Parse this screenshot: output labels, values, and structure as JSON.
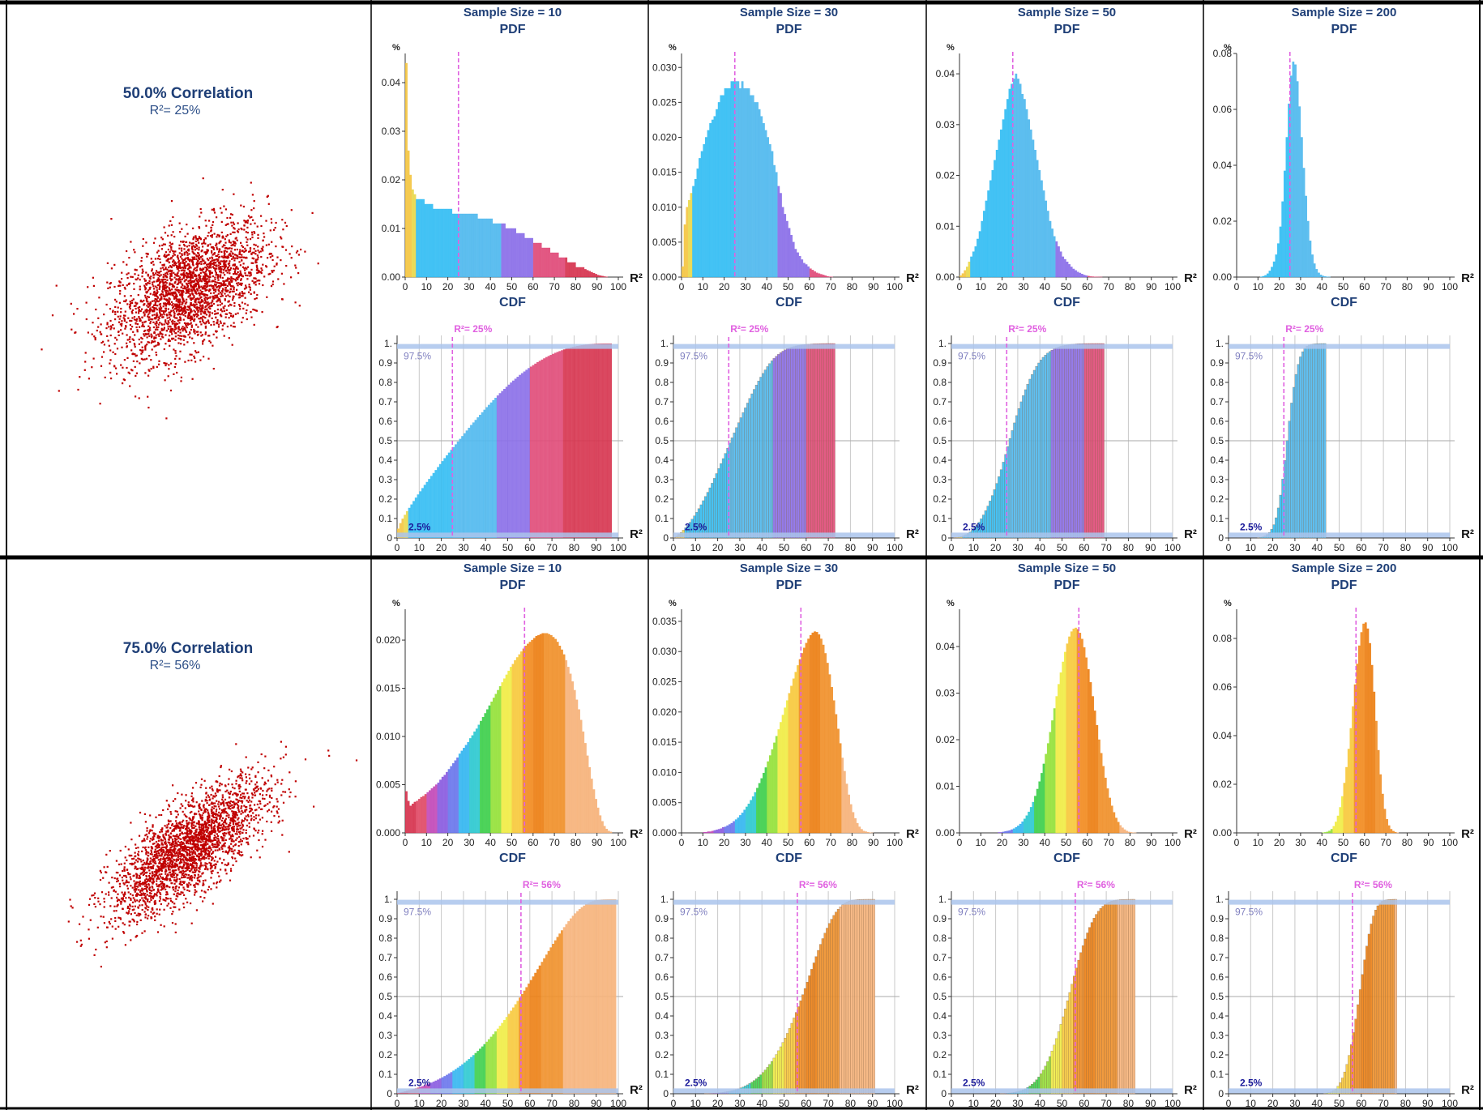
{
  "colors": {
    "title": "#1f3f77",
    "subtitle": "#2d4f88",
    "scatter": "#c00000",
    "median_line": "#e060e0",
    "band": "#aac4ec",
    "pct_label": "#8080c0",
    "low_label": "#1a1a9a",
    "axis": "#333333",
    "grid": "#c8c8c8",
    "frame": "#000000"
  },
  "labels": {
    "pdf": "PDF",
    "cdf": "CDF",
    "percent_axis": "%",
    "r2_axis": "R²",
    "band_upper": "97.5%",
    "band_lower": "2.5%"
  },
  "x_ticks": [
    "0",
    "10",
    "20",
    "30",
    "40",
    "50",
    "60",
    "70",
    "80",
    "90",
    "100"
  ],
  "cdf_y_ticks": [
    "0",
    "0.1",
    "0.2",
    "0.3",
    "0.4",
    "0.5",
    "0.6",
    "0.7",
    "0.8",
    "0.9",
    "1."
  ],
  "rows": [
    {
      "correlation_label": "50.0% Correlation",
      "r2_label": "R²= 25%",
      "cdf_marker_label": "R²= 25%",
      "correlation": 0.5,
      "true_r2": 25,
      "samples": [
        {
          "title": "Sample Size = 10",
          "pdf_y_ticks": [
            "0.00",
            "0.01",
            "0.02",
            "0.03",
            "0.04"
          ],
          "pdf_ymax": 0.046,
          "pdf_values": [
            0.044,
            0.026,
            0.021,
            0.018,
            0.017,
            0.016,
            0.016,
            0.016,
            0.016,
            0.015,
            0.015,
            0.015,
            0.015,
            0.014,
            0.014,
            0.014,
            0.014,
            0.014,
            0.014,
            0.014,
            0.014,
            0.014,
            0.013,
            0.013,
            0.013,
            0.013,
            0.013,
            0.013,
            0.013,
            0.013,
            0.013,
            0.013,
            0.013,
            0.013,
            0.012,
            0.012,
            0.012,
            0.012,
            0.012,
            0.012,
            0.012,
            0.011,
            0.011,
            0.011,
            0.011,
            0.011,
            0.011,
            0.01,
            0.01,
            0.01,
            0.01,
            0.01,
            0.009,
            0.009,
            0.009,
            0.009,
            0.008,
            0.008,
            0.008,
            0.008,
            0.007,
            0.007,
            0.007,
            0.007,
            0.006,
            0.006,
            0.006,
            0.006,
            0.005,
            0.005,
            0.005,
            0.005,
            0.004,
            0.004,
            0.004,
            0.004,
            0.003,
            0.003,
            0.003,
            0.003,
            0.002,
            0.002,
            0.002,
            0.002,
            0.0016,
            0.0014,
            0.0012,
            0.001,
            0.0008,
            0.0006,
            0.0004,
            0.0003,
            0.0002,
            0.0001,
            5e-05,
            0,
            0,
            0,
            0,
            0
          ],
          "cdf_end": 97
        },
        {
          "title": "Sample Size = 30",
          "pdf_y_ticks": [
            "0.000",
            "0.005",
            "0.010",
            "0.015",
            "0.020",
            "0.025",
            "0.030"
          ],
          "pdf_ymax": 0.032,
          "pdf_values": [
            0.0015,
            0.0075,
            0.01,
            0.011,
            0.012,
            0.013,
            0.014,
            0.0155,
            0.017,
            0.018,
            0.019,
            0.02,
            0.021,
            0.022,
            0.0225,
            0.023,
            0.024,
            0.025,
            0.026,
            0.026,
            0.027,
            0.027,
            0.027,
            0.028,
            0.028,
            0.028,
            0.028,
            0.027,
            0.028,
            0.027,
            0.027,
            0.027,
            0.026,
            0.026,
            0.025,
            0.025,
            0.024,
            0.023,
            0.022,
            0.021,
            0.02,
            0.019,
            0.018,
            0.016,
            0.015,
            0.013,
            0.012,
            0.01,
            0.009,
            0.008,
            0.007,
            0.006,
            0.005,
            0.004,
            0.0035,
            0.003,
            0.0025,
            0.002,
            0.0018,
            0.0015,
            0.0012,
            0.001,
            0.0008,
            0.0006,
            0.0005,
            0.0004,
            0.0003,
            0.0002,
            0.0001,
            5e-05,
            2e-05,
            0,
            0,
            0,
            0,
            0,
            0,
            0,
            0,
            0,
            0,
            0,
            0,
            0,
            0,
            0,
            0,
            0,
            0,
            0,
            0,
            0,
            0,
            0,
            0,
            0,
            0,
            0,
            0,
            0
          ],
          "cdf_end": 73
        },
        {
          "title": "Sample Size = 50",
          "pdf_y_ticks": [
            "0.00",
            "0.01",
            "0.02",
            "0.03",
            "0.04"
          ],
          "pdf_ymax": 0.044,
          "pdf_values": [
            0.0003,
            0.0007,
            0.0013,
            0.002,
            0.003,
            0.004,
            0.005,
            0.006,
            0.0075,
            0.009,
            0.011,
            0.013,
            0.015,
            0.017,
            0.019,
            0.021,
            0.023,
            0.025,
            0.027,
            0.029,
            0.031,
            0.033,
            0.035,
            0.037,
            0.038,
            0.039,
            0.04,
            0.039,
            0.038,
            0.036,
            0.035,
            0.033,
            0.031,
            0.029,
            0.027,
            0.025,
            0.023,
            0.021,
            0.019,
            0.017,
            0.015,
            0.013,
            0.011,
            0.0095,
            0.008,
            0.007,
            0.006,
            0.005,
            0.004,
            0.0035,
            0.003,
            0.0025,
            0.002,
            0.0016,
            0.0013,
            0.001,
            0.0008,
            0.0006,
            0.0004,
            0.0003,
            0.0002,
            0.0001,
            8e-05,
            5e-05,
            3e-05,
            2e-05,
            1e-05,
            0,
            0,
            0,
            0,
            0,
            0,
            0,
            0,
            0,
            0,
            0,
            0,
            0,
            0,
            0,
            0,
            0,
            0,
            0,
            0,
            0,
            0,
            0,
            0,
            0,
            0,
            0,
            0,
            0,
            0,
            0,
            0,
            0
          ],
          "cdf_end": 69
        },
        {
          "title": "Sample Size = 200",
          "pdf_y_ticks": [
            "0.00",
            "0.02",
            "0.04",
            "0.06",
            "0.08"
          ],
          "pdf_ymax": 0.08,
          "pdf_values": [
            0,
            0,
            0,
            0,
            0,
            0,
            0,
            0,
            0,
            0,
            0,
            0.0001,
            0.0003,
            0.0006,
            0.0012,
            0.0022,
            0.0036,
            0.0055,
            0.008,
            0.012,
            0.018,
            0.027,
            0.038,
            0.05,
            0.062,
            0.072,
            0.077,
            0.076,
            0.07,
            0.061,
            0.05,
            0.039,
            0.029,
            0.02,
            0.013,
            0.008,
            0.0048,
            0.0028,
            0.0015,
            0.0008,
            0.0004,
            0.0002,
            0.0001,
            5e-05,
            0,
            0,
            0,
            0,
            0,
            0,
            0,
            0,
            0,
            0,
            0,
            0,
            0,
            0,
            0,
            0,
            0,
            0,
            0,
            0,
            0,
            0,
            0,
            0,
            0,
            0,
            0,
            0,
            0,
            0,
            0,
            0,
            0,
            0,
            0,
            0,
            0,
            0,
            0,
            0,
            0,
            0,
            0,
            0,
            0,
            0,
            0,
            0,
            0,
            0,
            0,
            0,
            0,
            0,
            0,
            0
          ],
          "cdf_end": 44
        }
      ]
    },
    {
      "correlation_label": "75.0% Correlation",
      "r2_label": "R²= 56%",
      "cdf_marker_label": "R²= 56%",
      "correlation": 0.75,
      "true_r2": 56,
      "samples": [
        {
          "title": "Sample Size = 10",
          "pdf_y_ticks": [
            "0.000",
            "0.005",
            "0.010",
            "0.015",
            "0.020"
          ],
          "pdf_ymax": 0.0232,
          "pdf_values": [
            0.0043,
            0.0033,
            0.0028,
            0.003,
            0.0032,
            0.0033,
            0.0035,
            0.0037,
            0.0038,
            0.004,
            0.0042,
            0.0044,
            0.0046,
            0.0048,
            0.005,
            0.0052,
            0.0055,
            0.0058,
            0.006,
            0.0063,
            0.0066,
            0.0069,
            0.0072,
            0.0075,
            0.0078,
            0.0082,
            0.0085,
            0.0088,
            0.0091,
            0.0094,
            0.0098,
            0.0101,
            0.0105,
            0.0108,
            0.0112,
            0.0116,
            0.012,
            0.0124,
            0.0128,
            0.0132,
            0.0136,
            0.014,
            0.0144,
            0.0148,
            0.0152,
            0.0156,
            0.016,
            0.0164,
            0.0168,
            0.0172,
            0.0175,
            0.0179,
            0.0182,
            0.0185,
            0.0188,
            0.0191,
            0.0194,
            0.0196,
            0.0198,
            0.02,
            0.0202,
            0.0204,
            0.0205,
            0.0206,
            0.0207,
            0.0207,
            0.0207,
            0.0206,
            0.0205,
            0.0203,
            0.0201,
            0.0198,
            0.0194,
            0.019,
            0.0185,
            0.0179,
            0.0172,
            0.0165,
            0.0157,
            0.0148,
            0.0138,
            0.0128,
            0.0117,
            0.0105,
            0.0093,
            0.008,
            0.0068,
            0.0056,
            0.0045,
            0.0035,
            0.0026,
            0.0018,
            0.0012,
            0.0007,
            0.0004,
            0.0002,
            0.0001,
            0,
            0,
            0
          ],
          "cdf_end": 99
        },
        {
          "title": "Sample Size = 30",
          "pdf_y_ticks": [
            "0.000",
            "0.005",
            "0.010",
            "0.015",
            "0.020",
            "0.025",
            "0.030",
            "0.035"
          ],
          "pdf_ymax": 0.037,
          "pdf_values": [
            0,
            0,
            0,
            0,
            0,
            0,
            0,
            0,
            0,
            0,
            0.0001,
            0.0001,
            0.0002,
            0.0002,
            0.0003,
            0.0004,
            0.0005,
            0.0006,
            0.0007,
            0.0009,
            0.001,
            0.0012,
            0.0014,
            0.0016,
            0.0019,
            0.0022,
            0.0025,
            0.0029,
            0.0033,
            0.0038,
            0.0043,
            0.0048,
            0.0054,
            0.006,
            0.0067,
            0.0074,
            0.0082,
            0.009,
            0.0099,
            0.0108,
            0.0118,
            0.0128,
            0.0138,
            0.0149,
            0.016,
            0.0171,
            0.0183,
            0.0195,
            0.0207,
            0.0219,
            0.0231,
            0.0243,
            0.0255,
            0.0266,
            0.0277,
            0.0287,
            0.0297,
            0.0306,
            0.0314,
            0.0321,
            0.0327,
            0.0331,
            0.0333,
            0.0332,
            0.0328,
            0.0321,
            0.0311,
            0.0297,
            0.0281,
            0.0262,
            0.0241,
            0.0219,
            0.0196,
            0.0172,
            0.0148,
            0.0124,
            0.0102,
            0.0081,
            0.0063,
            0.0047,
            0.0034,
            0.0024,
            0.0016,
            0.001,
            0.0006,
            0.0003,
            0.0002,
            0.0001,
            4e-05,
            1e-05,
            0,
            0,
            0,
            0,
            0,
            0,
            0,
            0,
            0,
            0
          ],
          "cdf_end": 91
        },
        {
          "title": "Sample Size = 50",
          "pdf_y_ticks": [
            "0.00",
            "0.01",
            "0.02",
            "0.03",
            "0.04"
          ],
          "pdf_ymax": 0.048,
          "pdf_values": [
            0,
            0,
            0,
            0,
            0,
            0,
            0,
            0,
            0,
            0,
            0,
            0,
            0,
            0,
            0,
            0,
            0,
            0,
            0.0001,
            0.0001,
            0.0002,
            0.0003,
            0.0004,
            0.0005,
            0.0007,
            0.0009,
            0.0012,
            0.0015,
            0.0019,
            0.0024,
            0.003,
            0.0037,
            0.0045,
            0.0055,
            0.0066,
            0.0079,
            0.0094,
            0.011,
            0.0128,
            0.0148,
            0.0169,
            0.0192,
            0.0216,
            0.0241,
            0.0267,
            0.0293,
            0.0319,
            0.0344,
            0.0367,
            0.0388,
            0.0406,
            0.0421,
            0.0432,
            0.0438,
            0.044,
            0.0437,
            0.0429,
            0.0416,
            0.0398,
            0.0376,
            0.0351,
            0.0323,
            0.0293,
            0.0262,
            0.0231,
            0.02,
            0.0171,
            0.0143,
            0.0118,
            0.0095,
            0.0075,
            0.0058,
            0.0044,
            0.0032,
            0.0023,
            0.0016,
            0.0011,
            0.0007,
            0.0004,
            0.0002,
            0.0001,
            5e-05,
            2e-05,
            0,
            0,
            0,
            0,
            0,
            0,
            0,
            0,
            0,
            0,
            0,
            0,
            0,
            0,
            0,
            0,
            0
          ],
          "cdf_end": 83
        },
        {
          "title": "Sample Size = 200",
          "pdf_y_ticks": [
            "0.00",
            "0.02",
            "0.04",
            "0.06",
            "0.08"
          ],
          "pdf_ymax": 0.092,
          "pdf_values": [
            0,
            0,
            0,
            0,
            0,
            0,
            0,
            0,
            0,
            0,
            0,
            0,
            0,
            0,
            0,
            0,
            0,
            0,
            0,
            0,
            0,
            0,
            0,
            0,
            0,
            0,
            0,
            0,
            0,
            0,
            0,
            0,
            0,
            0,
            0,
            0,
            0,
            0,
            0,
            0,
            0.0001,
            0.0002,
            0.0004,
            0.0008,
            0.0015,
            0.0027,
            0.0045,
            0.007,
            0.0105,
            0.015,
            0.0205,
            0.027,
            0.0345,
            0.043,
            0.052,
            0.061,
            0.0695,
            0.077,
            0.0825,
            0.086,
            0.0865,
            0.084,
            0.078,
            0.069,
            0.058,
            0.046,
            0.034,
            0.024,
            0.016,
            0.0098,
            0.0056,
            0.003,
            0.0015,
            0.0007,
            0.0003,
            0.0001,
            0,
            0,
            0,
            0,
            0,
            0,
            0,
            0,
            0,
            0,
            0,
            0,
            0,
            0,
            0,
            0,
            0,
            0,
            0,
            0,
            0,
            0,
            0,
            0
          ],
          "cdf_end": 76
        }
      ]
    }
  ]
}
